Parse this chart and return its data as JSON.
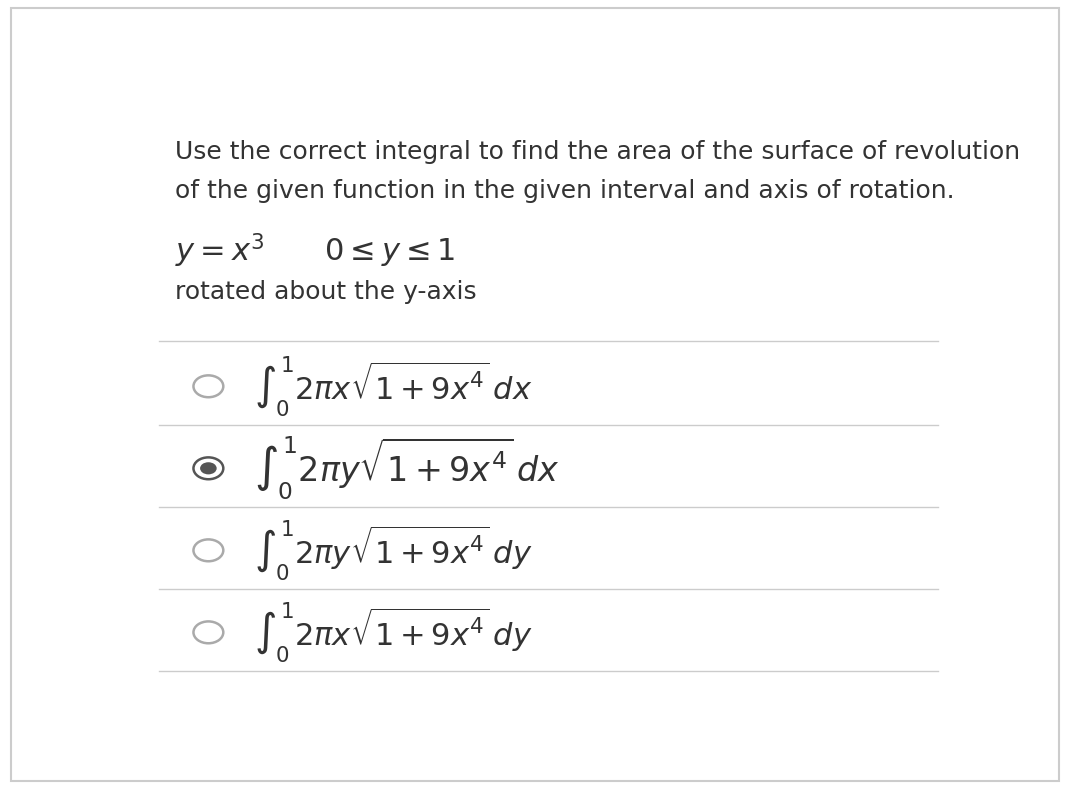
{
  "background_color": "#ffffff",
  "border_color": "#cccccc",
  "question_line1": "Use the correct integral to find the area of the surface of revolution",
  "question_line2": "of the given function in the given interval and axis of rotation.",
  "function_line": "$y = x^3 \\quad\\quad 0 \\leq y \\leq 1$",
  "rotation_line": "rotated about the y-axis",
  "options": [
    {
      "label": "$\\int_0^1 2\\pi x \\sqrt{1 + 9x^4}\\, dx$",
      "selected": false,
      "bold": false
    },
    {
      "label": "$\\int_0^1 2\\pi y \\sqrt{1 + 9x^4}\\, dx$",
      "selected": true,
      "bold": true
    },
    {
      "label": "$\\int_0^1 2\\pi y \\sqrt{1 + 9x^4}\\, dy$",
      "selected": false,
      "bold": false
    },
    {
      "label": "$\\int_0^1 2\\pi x \\sqrt{1 + 9x^4}\\, dy$",
      "selected": false,
      "bold": false
    }
  ],
  "radio_color_unselected": "#aaaaaa",
  "radio_color_selected": "#555555",
  "text_color": "#333333",
  "separator_color": "#cccccc",
  "option_fontsize": 22,
  "selected_fontsize": 24,
  "question_fontsize": 18,
  "func_fontsize": 22
}
